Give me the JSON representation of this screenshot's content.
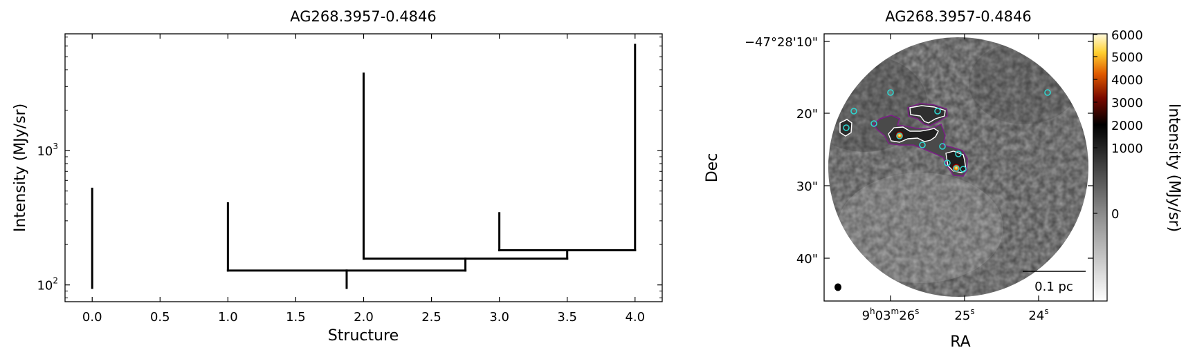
{
  "chart_data": [
    {
      "type": "dendrogram",
      "title": "AG268.3957-0.4846",
      "xlabel": "Structure",
      "ylabel": "Intensity (MJy/sr)",
      "xlim": [
        -0.2,
        4.2
      ],
      "ylim": [
        75,
        7400
      ],
      "yscale": "log",
      "xticks": [
        "0.0",
        "0.5",
        "1.0",
        "1.5",
        "2.0",
        "2.5",
        "3.0",
        "3.5",
        "4.0"
      ],
      "yticks": [
        {
          "value": 100,
          "base": "10",
          "exp": "2"
        },
        {
          "value": 1000,
          "base": "10",
          "exp": "3"
        }
      ],
      "line_color": "#000000",
      "segments": [
        {
          "x": [
            0,
            0
          ],
          "y": [
            95,
            520
          ]
        },
        {
          "x": [
            1.875,
            1.875
          ],
          "y": [
            95,
            128
          ]
        },
        {
          "x": [
            1,
            2.75
          ],
          "y": [
            128,
            128
          ]
        },
        {
          "x": [
            1,
            1
          ],
          "y": [
            128,
            405
          ]
        },
        {
          "x": [
            2.75,
            2.75
          ],
          "y": [
            128,
            157
          ]
        },
        {
          "x": [
            2,
            3.5
          ],
          "y": [
            157,
            157
          ]
        },
        {
          "x": [
            2,
            2
          ],
          "y": [
            157,
            3740
          ]
        },
        {
          "x": [
            3.5,
            3.5
          ],
          "y": [
            157,
            181
          ]
        },
        {
          "x": [
            3,
            4
          ],
          "y": [
            181,
            181
          ]
        },
        {
          "x": [
            3,
            3
          ],
          "y": [
            181,
            342
          ]
        },
        {
          "x": [
            4,
            4
          ],
          "y": [
            181,
            6120
          ]
        }
      ]
    },
    {
      "type": "image",
      "title": "AG268.3957-0.4846",
      "xlabel": "RA",
      "ylabel": "Dec",
      "colorbar_label": "Intensity (MJy/sr)",
      "colormap": "gray-to-hot",
      "colorbar_ticks": [
        "6000",
        "5000",
        "4000",
        "3000",
        "2000",
        "1000",
        "0"
      ],
      "dec_ticks": [
        "−47°28'10\"",
        "20\"",
        "30\"",
        "40\""
      ],
      "ra_ticks": [
        {
          "main": "9",
          "h": "h",
          "m1": "03",
          "m": "m",
          "s1": "26",
          "s": "s"
        },
        {
          "s1": "25",
          "s": "s"
        },
        {
          "s1": "24",
          "s": "s"
        }
      ],
      "scale_bar_label": "0.1 pc",
      "contour_colors": {
        "inner": "#ffffff",
        "outer": "#7b1f86"
      },
      "source_marker_color": "#2fd6d0"
    }
  ]
}
